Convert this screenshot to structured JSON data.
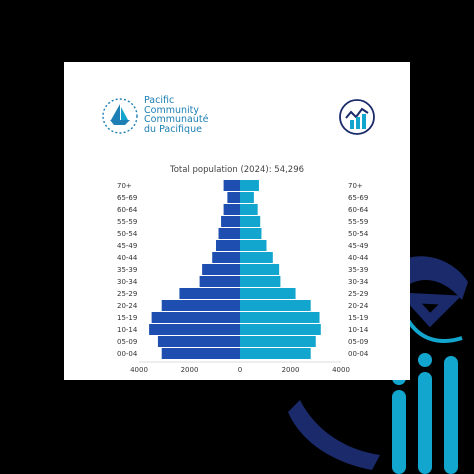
{
  "branding": {
    "logo_line1": "Pacific",
    "logo_line2": "Community",
    "logo_line3": "Communauté",
    "logo_line4": "du Pacifique"
  },
  "chart_data": {
    "type": "population-pyramid",
    "title": "Total population (2024): 54,296",
    "age_groups": [
      "70+",
      "65-69",
      "60-64",
      "55-59",
      "50-54",
      "45-49",
      "40-44",
      "35-39",
      "30-34",
      "25-29",
      "20-24",
      "15-19",
      "10-14",
      "05-09",
      "00-04"
    ],
    "series": [
      {
        "color": "#1e4fb0",
        "side": "left",
        "values": [
          650,
          500,
          650,
          750,
          850,
          950,
          1100,
          1500,
          1600,
          2400,
          3100,
          3500,
          3600,
          3250,
          3100
        ]
      },
      {
        "color": "#12a6cf",
        "side": "right",
        "values": [
          750,
          550,
          700,
          800,
          850,
          1050,
          1300,
          1550,
          1600,
          2200,
          2800,
          3150,
          3200,
          3000,
          2800
        ]
      }
    ],
    "x_ticks": [
      "4000",
      "2000",
      "0",
      "2000",
      "4000"
    ],
    "xlim": [
      -4000,
      4000
    ],
    "colors": {
      "left": "#1e4fb0",
      "right": "#12a6cf",
      "brand": "#1d7fb3"
    }
  }
}
